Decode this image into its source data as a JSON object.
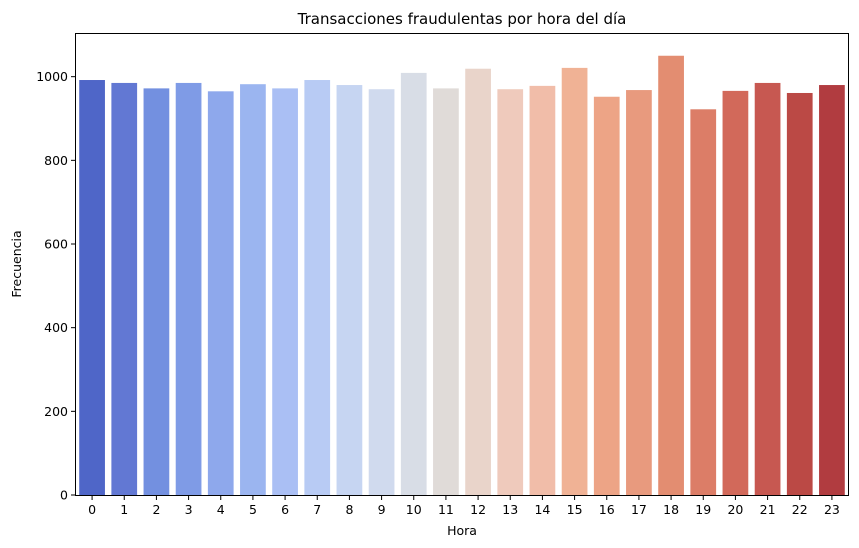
{
  "chart_data": {
    "type": "bar",
    "title": "Transacciones fraudulentas por hora del día",
    "xlabel": "Hora",
    "ylabel": "Frecuencia",
    "categories": [
      "0",
      "1",
      "2",
      "3",
      "4",
      "5",
      "6",
      "7",
      "8",
      "9",
      "10",
      "11",
      "12",
      "13",
      "14",
      "15",
      "16",
      "17",
      "18",
      "19",
      "20",
      "21",
      "22",
      "23"
    ],
    "values": [
      992,
      985,
      972,
      985,
      965,
      982,
      972,
      992,
      980,
      970,
      1009,
      972,
      1019,
      970,
      978,
      1021,
      952,
      968,
      1050,
      922,
      966,
      985,
      961,
      980
    ],
    "ylim": [
      0,
      1102
    ],
    "yticks": [
      0,
      200,
      400,
      600,
      800,
      1000
    ],
    "grid": false,
    "colors": [
      "#4f66c8",
      "#6278d3",
      "#7390e0",
      "#7f9be6",
      "#8ea8ec",
      "#9bb5f0",
      "#aabff4",
      "#b8cbf4",
      "#c6d5f2",
      "#d0daee",
      "#d8dde6",
      "#e0dbd8",
      "#e9d4ca",
      "#efcabc",
      "#f1bda9",
      "#f0b295",
      "#eda486",
      "#e89a7e",
      "#e38d71",
      "#dc7d67",
      "#d2695a",
      "#c75851",
      "#bb4945",
      "#b13c40"
    ]
  }
}
